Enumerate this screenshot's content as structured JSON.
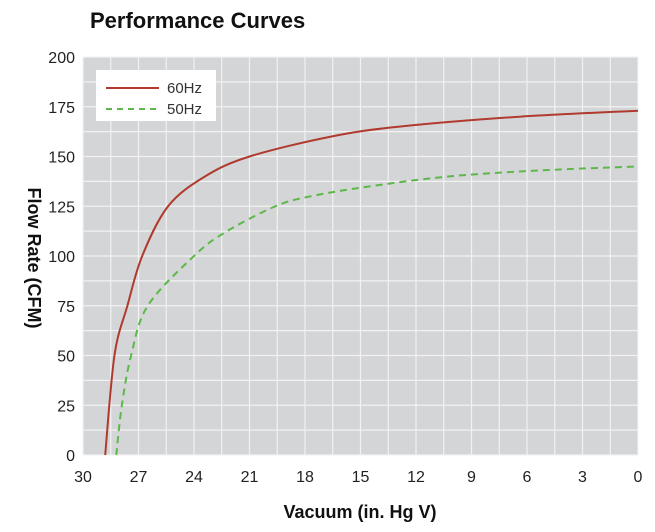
{
  "chart_data": {
    "type": "line",
    "title": "Performance Curves",
    "xlabel": "Vacuum (in. Hg V)",
    "ylabel": "Flow Rate (CFM)",
    "xlim": [
      30,
      0
    ],
    "ylim": [
      0,
      200
    ],
    "x_reversed": true,
    "xticks": [
      30,
      27,
      24,
      21,
      18,
      15,
      12,
      9,
      6,
      3,
      0
    ],
    "yticks": [
      0,
      25,
      50,
      75,
      100,
      125,
      150,
      175,
      200
    ],
    "grid": true,
    "legend_position": "top-left",
    "plot_background": "#d4d5d7",
    "series": [
      {
        "name": "60Hz",
        "color": "#b03a2e",
        "style": "solid",
        "points": [
          [
            28.8,
            0
          ],
          [
            28.3,
            50
          ],
          [
            27.6,
            75
          ],
          [
            26.8,
            100
          ],
          [
            25.4,
            125
          ],
          [
            23.4,
            140
          ],
          [
            21,
            150
          ],
          [
            16.6,
            160
          ],
          [
            12.9,
            165
          ],
          [
            6.4,
            170
          ],
          [
            0,
            173
          ]
        ]
      },
      {
        "name": "50Hz",
        "color": "#5cb848",
        "style": "dashed",
        "points": [
          [
            28.2,
            0
          ],
          [
            27.9,
            25
          ],
          [
            27.4,
            50
          ],
          [
            26.5,
            75
          ],
          [
            24,
            100
          ],
          [
            22.3,
            112
          ],
          [
            19.6,
            125
          ],
          [
            17.7,
            130
          ],
          [
            14.5,
            135
          ],
          [
            10.2,
            140
          ],
          [
            5.3,
            143
          ],
          [
            0,
            145
          ]
        ]
      }
    ]
  }
}
